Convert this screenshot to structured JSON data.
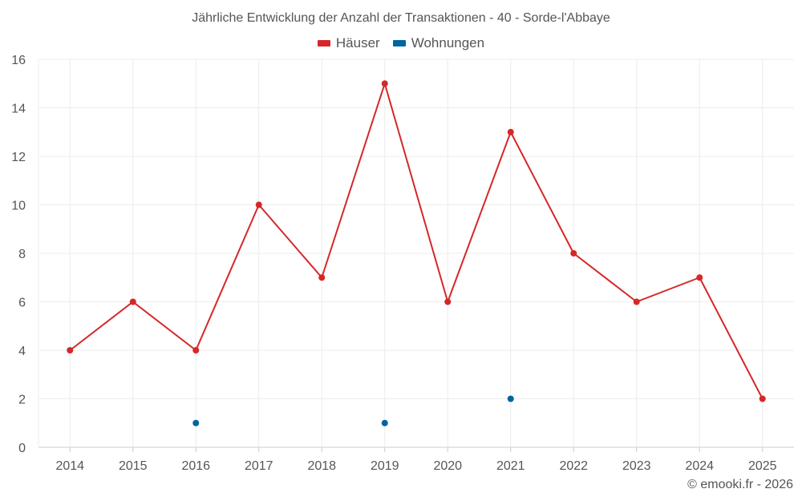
{
  "chart_data": {
    "type": "line",
    "title": "Jährliche Entwicklung der Anzahl der Transaktionen - 40 - Sorde-l'Abbaye",
    "categories": [
      "2014",
      "2015",
      "2016",
      "2017",
      "2018",
      "2019",
      "2020",
      "2021",
      "2022",
      "2023",
      "2024",
      "2025"
    ],
    "series": [
      {
        "name": "Häuser",
        "color": "#d62728",
        "values": [
          4,
          6,
          4,
          10,
          7,
          15,
          6,
          13,
          8,
          6,
          7,
          2
        ],
        "style": "line-with-markers"
      },
      {
        "name": "Wohnungen",
        "color": "#00649f",
        "values": [
          null,
          null,
          1,
          null,
          null,
          1,
          null,
          2,
          null,
          null,
          null,
          null
        ],
        "style": "markers-only"
      }
    ],
    "ylim": [
      0,
      16
    ],
    "yticks": [
      0,
      2,
      4,
      6,
      8,
      10,
      12,
      14,
      16
    ],
    "xlabel": "",
    "ylabel": "",
    "grid": true,
    "legend_position": "top-center"
  },
  "footer": {
    "copyright": "© emooki.fr - 2026"
  }
}
